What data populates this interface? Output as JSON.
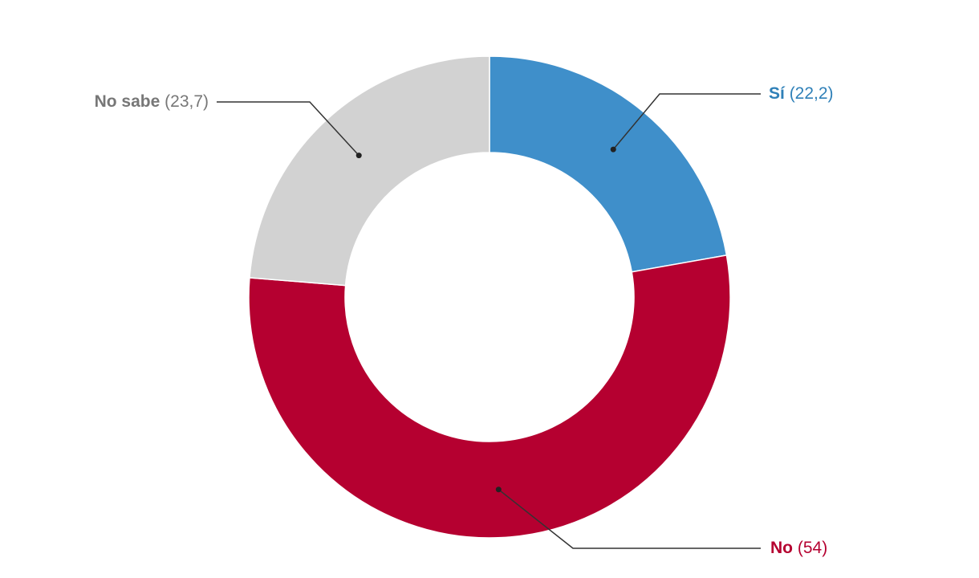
{
  "chart_data": {
    "type": "donut",
    "categories": [
      "Sí",
      "No",
      "No sabe"
    ],
    "values": [
      22.2,
      54,
      23.7
    ],
    "value_labels": [
      "(22,2)",
      "(54)",
      "(23,7)"
    ],
    "colors": [
      "#3f8fca",
      "#b50030",
      "#d2d2d2"
    ],
    "label_colors": [
      "#2f80b8",
      "#b50030",
      "#777777"
    ]
  }
}
